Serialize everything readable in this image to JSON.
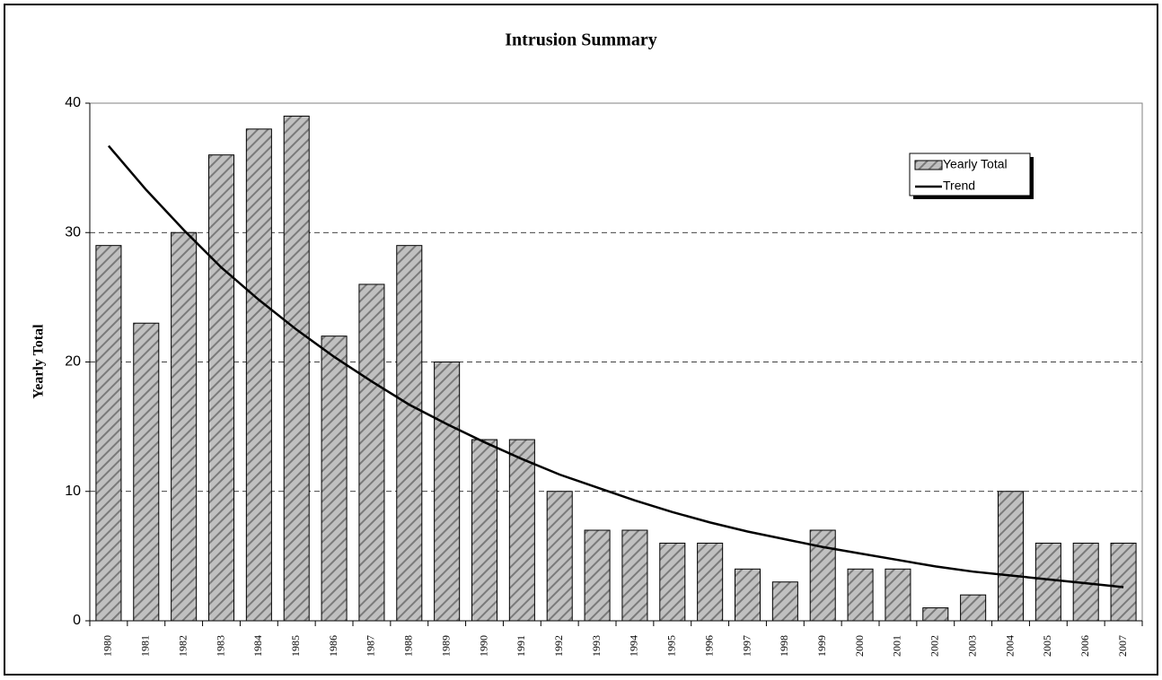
{
  "chart_data": {
    "type": "bar",
    "title": "Intrusion Summary",
    "ylabel": "Yearly Total",
    "categories": [
      "1980",
      "1981",
      "1982",
      "1983",
      "1984",
      "1985",
      "1986",
      "1987",
      "1988",
      "1989",
      "1990",
      "1991",
      "1992",
      "1993",
      "1994",
      "1995",
      "1996",
      "1997",
      "1998",
      "1999",
      "2000",
      "2001",
      "2002",
      "2003",
      "2004",
      "2005",
      "2006",
      "2007"
    ],
    "series": [
      {
        "name": "Yearly Total",
        "color": "#c0c0c0",
        "values": [
          29,
          23,
          30,
          36,
          38,
          39,
          22,
          26,
          29,
          20,
          14,
          14,
          10,
          7,
          7,
          6,
          6,
          4,
          3,
          7,
          4,
          4,
          1,
          2,
          10,
          6,
          6,
          6
        ]
      },
      {
        "name": "Trend",
        "type": "line",
        "color": "#000000",
        "values": [
          36.7,
          33.3,
          30.2,
          27.3,
          24.8,
          22.5,
          20.4,
          18.5,
          16.7,
          15.2,
          13.8,
          12.5,
          11.3,
          10.3,
          9.3,
          8.4,
          7.6,
          6.9,
          6.3,
          5.7,
          5.2,
          4.7,
          4.2,
          3.8,
          3.5,
          3.2,
          2.9,
          2.6
        ]
      }
    ],
    "ylim": [
      0,
      40
    ],
    "yticks": [
      0,
      10,
      20,
      30,
      40
    ],
    "grid": true,
    "legend": "upper right"
  }
}
